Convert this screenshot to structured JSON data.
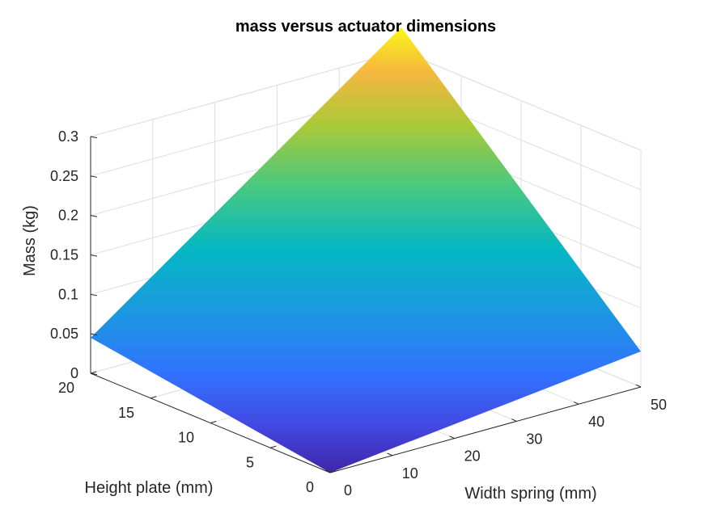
{
  "chart_data": {
    "type": "surface",
    "title": "mass versus actuator dimensions",
    "xlabel": "Width spring (mm)",
    "ylabel": "Height plate (mm)",
    "zlabel": "Mass (kg)",
    "x_ticks": [
      "0",
      "10",
      "20",
      "30",
      "40",
      "50"
    ],
    "y_ticks": [
      "0",
      "5",
      "10",
      "15",
      "20"
    ],
    "z_ticks": [
      "0",
      "0.05",
      "0.1",
      "0.15",
      "0.2",
      "0.25",
      "0.3"
    ],
    "xlim": [
      0,
      50
    ],
    "ylim": [
      0,
      20
    ],
    "zlim": [
      0,
      0.3
    ],
    "grid": true,
    "colormap": "parula",
    "surface_corners": [
      {
        "x": 0,
        "y": 0,
        "z": 0.0
      },
      {
        "x": 50,
        "y": 0,
        "z": 0.045
      },
      {
        "x": 50,
        "y": 20,
        "z": 0.33
      },
      {
        "x": 0,
        "y": 20,
        "z": 0.045
      }
    ]
  }
}
